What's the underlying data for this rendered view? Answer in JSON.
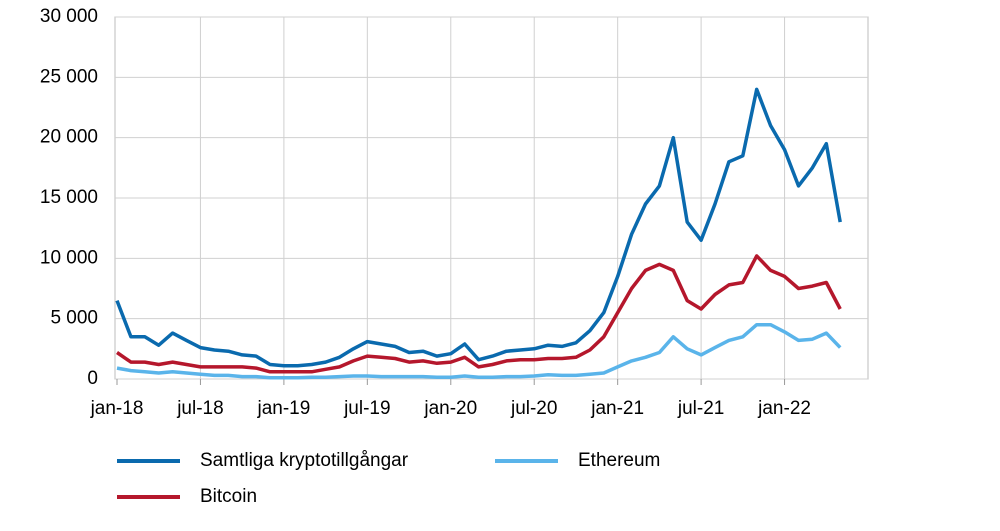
{
  "chart_data": {
    "type": "line",
    "categories": [
      "jan-18",
      null,
      null,
      null,
      null,
      null,
      "jul-18",
      null,
      null,
      null,
      null,
      null,
      "jan-19",
      null,
      null,
      null,
      null,
      null,
      "jul-19",
      null,
      null,
      null,
      null,
      null,
      "jan-20",
      null,
      null,
      null,
      null,
      null,
      "jul-20",
      null,
      null,
      null,
      null,
      null,
      "jan-21",
      null,
      null,
      null,
      null,
      null,
      "jul-21",
      null,
      null,
      null,
      null,
      null,
      "jan-22",
      null,
      null,
      null,
      null,
      null,
      null
    ],
    "series": [
      {
        "name": "Samtliga kryptotillgångar",
        "color": "#0a6aae",
        "values": [
          6500,
          3500,
          3500,
          2800,
          3800,
          3200,
          2600,
          2400,
          2300,
          2000,
          1900,
          1200,
          1100,
          1100,
          1200,
          1400,
          1800,
          2500,
          3100,
          2900,
          2700,
          2200,
          2300,
          1900,
          2100,
          2900,
          1600,
          1900,
          2300,
          2400,
          2500,
          2800,
          2700,
          3000,
          4000,
          5500,
          8500,
          12000,
          14500,
          16000,
          20000,
          13000,
          11500,
          14500,
          18000,
          18500,
          24000,
          21000,
          19000,
          16000,
          17500,
          19500,
          13000,
          null,
          null
        ]
      },
      {
        "name": "Bitcoin",
        "color": "#b5172c",
        "values": [
          2200,
          1400,
          1400,
          1200,
          1400,
          1200,
          1000,
          1000,
          1000,
          1000,
          900,
          600,
          600,
          600,
          600,
          800,
          1000,
          1500,
          1900,
          1800,
          1700,
          1400,
          1500,
          1300,
          1400,
          1800,
          1000,
          1200,
          1500,
          1600,
          1600,
          1700,
          1700,
          1800,
          2400,
          3500,
          5500,
          7500,
          9000,
          9500,
          9000,
          6500,
          5800,
          7000,
          7800,
          8000,
          10200,
          9000,
          8500,
          7500,
          7700,
          8000,
          5800,
          null,
          null
        ]
      },
      {
        "name": "Ethereum",
        "color": "#5ab4ea",
        "values": [
          900,
          700,
          600,
          500,
          600,
          500,
          400,
          300,
          300,
          200,
          200,
          100,
          100,
          100,
          150,
          150,
          200,
          250,
          250,
          200,
          200,
          200,
          200,
          150,
          150,
          250,
          150,
          150,
          200,
          200,
          250,
          350,
          300,
          300,
          400,
          500,
          1000,
          1500,
          1800,
          2200,
          3500,
          2500,
          2000,
          2600,
          3200,
          3500,
          4500,
          4500,
          3900,
          3200,
          3300,
          3800,
          2600,
          null,
          null
        ]
      }
    ],
    "ylim": [
      0,
      30000
    ],
    "yticks": [
      0,
      {
        "value": 5000,
        "label": "5 000"
      },
      {
        "value": 10000,
        "label": "10 000"
      },
      {
        "value": 15000,
        "label": "15 000"
      },
      {
        "value": 20000,
        "label": "20 000"
      },
      {
        "value": 25000,
        "label": "25 000"
      },
      {
        "value": 30000,
        "label": "30 000"
      }
    ],
    "grid": true,
    "legend": "bottom"
  }
}
